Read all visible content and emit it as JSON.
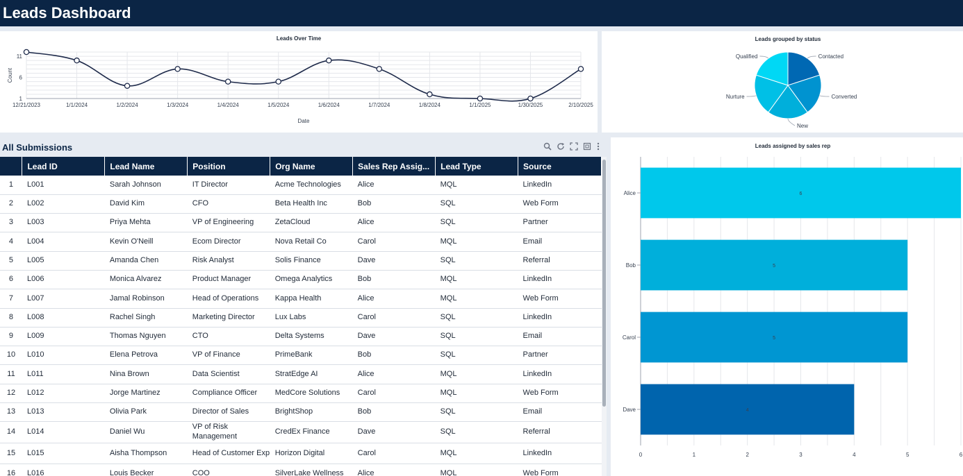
{
  "app": {
    "title": "Leads Dashboard"
  },
  "line_chart": {
    "title": "Leads Over Time",
    "xlabel": "Date",
    "ylabel": "Count",
    "chart_data": {
      "type": "line",
      "x": [
        "12/21/2023",
        "1/1/2024",
        "1/2/2024",
        "1/3/2024",
        "1/4/2024",
        "1/5/2024",
        "1/6/2024",
        "1/7/2024",
        "1/8/2024",
        "1/1/2025",
        "1/30/2025",
        "2/10/2025"
      ],
      "values": [
        12,
        10,
        4,
        8,
        5,
        5,
        10,
        8,
        2,
        1,
        1,
        8
      ],
      "ylim": [
        1,
        12
      ],
      "yticks": [
        1,
        6,
        11
      ],
      "color": "#1e2a4a"
    }
  },
  "pie_chart": {
    "title": "Leads grouped by status",
    "chart_data": {
      "type": "pie",
      "labels": [
        "Contacted",
        "Converted",
        "New",
        "Nurture",
        "Qualified"
      ],
      "values": [
        4,
        4,
        4,
        4,
        4
      ],
      "colors": [
        "#0068b3",
        "#0093d0",
        "#00afdb",
        "#00c0e6",
        "#00d8f5"
      ]
    }
  },
  "bar_chart": {
    "title": "Leads assigned by sales rep",
    "chart_data": {
      "type": "bar",
      "orientation": "horizontal",
      "categories": [
        "Alice",
        "Bob",
        "Carol",
        "Dave"
      ],
      "values": [
        6,
        5,
        5,
        4
      ],
      "xticks": [
        0,
        1,
        2,
        3,
        4,
        5,
        6
      ],
      "xlim": [
        0,
        6
      ],
      "colors": [
        "#00c8eb",
        "#00afdb",
        "#0096d2",
        "#0064ad"
      ]
    }
  },
  "submissions": {
    "title": "All Submissions",
    "tools": [
      "search-icon",
      "refresh-icon",
      "expand-icon",
      "export-icon",
      "more-icon"
    ],
    "columns": [
      "",
      "Lead ID",
      "Lead Name",
      "Position",
      "Org Name",
      "Sales Rep Assig...",
      "Lead Type",
      "Source"
    ],
    "rows": [
      [
        "1",
        "L001",
        "Sarah Johnson",
        "IT Director",
        "Acme Technologies",
        "Alice",
        "MQL",
        "LinkedIn"
      ],
      [
        "2",
        "L002",
        "David Kim",
        "CFO",
        "Beta Health Inc",
        "Bob",
        "SQL",
        "Web Form"
      ],
      [
        "3",
        "L003",
        "Priya Mehta",
        "VP of Engineering",
        "ZetaCloud",
        "Alice",
        "SQL",
        "Partner"
      ],
      [
        "4",
        "L004",
        "Kevin O'Neill",
        "Ecom Director",
        "Nova Retail Co",
        "Carol",
        "MQL",
        "Email"
      ],
      [
        "5",
        "L005",
        "Amanda Chen",
        "Risk Analyst",
        "Solis Finance",
        "Dave",
        "SQL",
        "Referral"
      ],
      [
        "6",
        "L006",
        "Monica Alvarez",
        "Product Manager",
        "Omega Analytics",
        "Bob",
        "MQL",
        "LinkedIn"
      ],
      [
        "7",
        "L007",
        "Jamal Robinson",
        "Head of Operations",
        "Kappa Health",
        "Alice",
        "MQL",
        "Web Form"
      ],
      [
        "8",
        "L008",
        "Rachel Singh",
        "Marketing Director",
        "Lux Labs",
        "Carol",
        "SQL",
        "LinkedIn"
      ],
      [
        "9",
        "L009",
        "Thomas Nguyen",
        "CTO",
        "Delta Systems",
        "Dave",
        "SQL",
        "Email"
      ],
      [
        "10",
        "L010",
        "Elena Petrova",
        "VP of Finance",
        "PrimeBank",
        "Bob",
        "SQL",
        "Partner"
      ],
      [
        "11",
        "L011",
        "Nina Brown",
        "Data Scientist",
        "StratEdge AI",
        "Alice",
        "MQL",
        "LinkedIn"
      ],
      [
        "12",
        "L012",
        "Jorge Martinez",
        "Compliance Officer",
        "MedCore Solutions",
        "Carol",
        "MQL",
        "Web Form"
      ],
      [
        "13",
        "L013",
        "Olivia Park",
        "Director of Sales",
        "BrightShop",
        "Bob",
        "SQL",
        "Email"
      ],
      [
        "14",
        "L014",
        "Daniel Wu",
        "VP of Risk Management",
        "CredEx Finance",
        "Dave",
        "SQL",
        "Referral"
      ],
      [
        "15",
        "L015",
        "Aisha Thompson",
        "Head of Customer Exp",
        "Horizon Digital",
        "Carol",
        "MQL",
        "LinkedIn"
      ],
      [
        "16",
        "L016",
        "Louis Becker",
        "COO",
        "SilverLake Wellness",
        "Alice",
        "MQL",
        "Web Form"
      ]
    ]
  }
}
